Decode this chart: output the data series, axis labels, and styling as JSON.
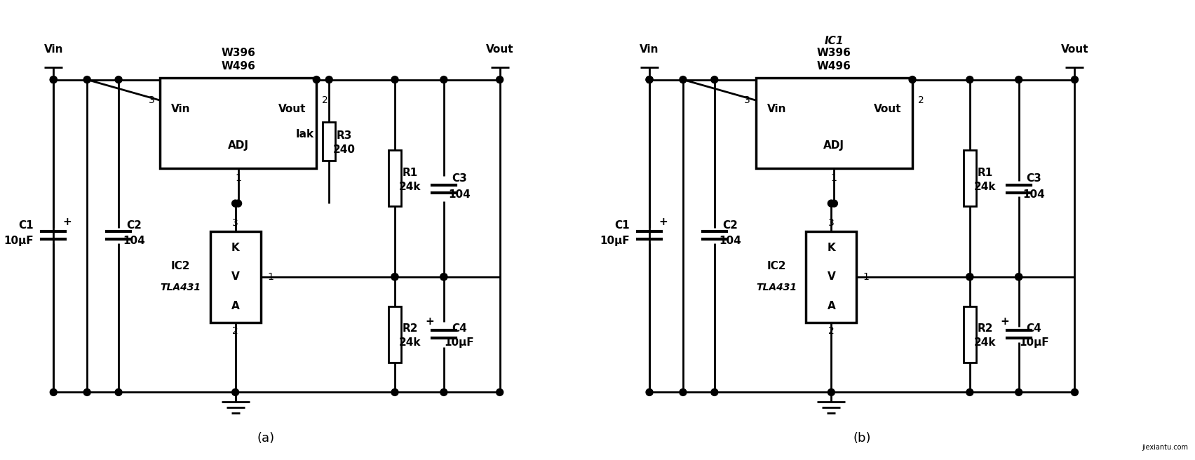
{
  "fig_width": 17.04,
  "fig_height": 6.56,
  "dpi": 100,
  "bg_color": "#ffffff",
  "title_a": "(a)",
  "title_b": "(b)",
  "watermark": "jiexiantu.com",
  "circuit_a": {
    "ic1_labels": [
      "W396",
      "W496"
    ],
    "ic2_labels": [
      "IC2",
      "TLA431"
    ],
    "components": {
      "R1": "24k",
      "R2": "24k",
      "R3": "240",
      "C1": "10μF",
      "C2": "104",
      "C3": "104",
      "C4": "10μF"
    }
  },
  "circuit_b": {
    "ic1_labels": [
      "IC1",
      "W396",
      "W496"
    ],
    "ic2_labels": [
      "IC2",
      "TLA431"
    ],
    "components": {
      "R1": "24k",
      "R2": "24k",
      "C1": "10μF",
      "C2": "104",
      "C3": "104",
      "C4": "10μF"
    }
  }
}
